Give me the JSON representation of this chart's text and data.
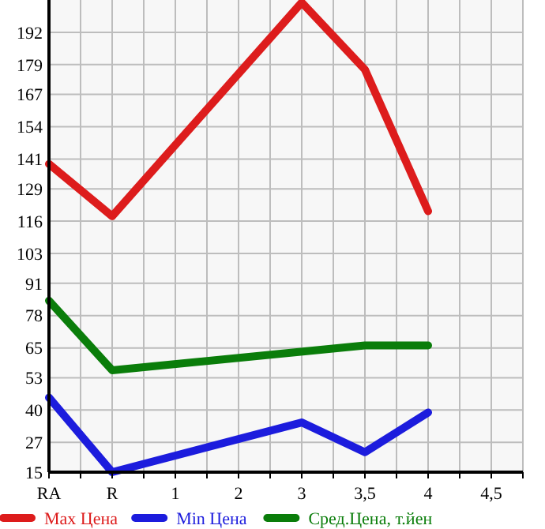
{
  "chart_data": {
    "type": "line",
    "categories": [
      "RA",
      "R",
      "1",
      "2",
      "3",
      "3,5",
      "4",
      "4,5"
    ],
    "series": [
      {
        "name": "Max Цена",
        "color": "#dd1c1c",
        "values": [
          139,
          118,
          null,
          null,
          204,
          177,
          120,
          null
        ]
      },
      {
        "name": "Min Цена",
        "color": "#1c1cdd",
        "values": [
          45,
          15,
          null,
          null,
          35,
          23,
          39,
          null
        ]
      },
      {
        "name": "Сред.Цена, т.йен",
        "color": "#0a7d0a",
        "values": [
          84,
          56,
          null,
          null,
          null,
          66,
          66,
          null
        ]
      }
    ],
    "ylim": [
      15,
      205
    ],
    "yticks": [
      15,
      27,
      40,
      53,
      65,
      78,
      91,
      103,
      116,
      129,
      141,
      154,
      167,
      179,
      192
    ],
    "grid": true,
    "legend": "bottom",
    "marker": "none",
    "line_style": "solid"
  }
}
